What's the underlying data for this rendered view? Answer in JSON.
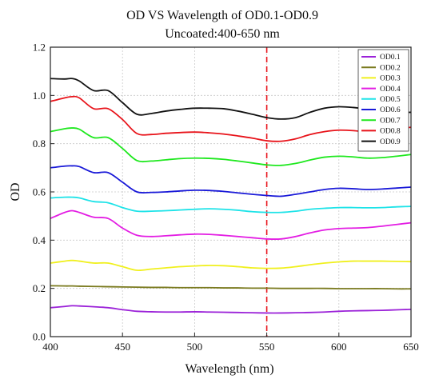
{
  "chart_data": {
    "type": "line",
    "title": "OD VS Wavelength of OD0.1-OD0.9",
    "subtitle": "Uncoated:400-650 nm",
    "xlabel": "Wavelength (nm)",
    "ylabel": "OD",
    "xlim": [
      400,
      650
    ],
    "ylim": [
      0.0,
      1.2
    ],
    "xticks": [
      400,
      450,
      500,
      550,
      600,
      650
    ],
    "yticks": [
      "0.0",
      "0.2",
      "0.4",
      "0.6",
      "0.8",
      "1.0",
      "1.2"
    ],
    "grid": true,
    "legend_position": "top-right",
    "reference_line": {
      "x": 550,
      "color": "#e8111a",
      "style": "dashed"
    },
    "x": [
      400,
      410,
      415,
      420,
      430,
      440,
      450,
      460,
      470,
      480,
      490,
      500,
      510,
      520,
      530,
      540,
      550,
      560,
      570,
      580,
      590,
      600,
      610,
      620,
      630,
      640,
      650
    ],
    "series": [
      {
        "name": "OD0.1",
        "color": "#9b22d8",
        "values": [
          0.12,
          0.125,
          0.128,
          0.127,
          0.124,
          0.12,
          0.112,
          0.105,
          0.103,
          0.102,
          0.102,
          0.103,
          0.102,
          0.101,
          0.1,
          0.099,
          0.098,
          0.098,
          0.099,
          0.1,
          0.102,
          0.105,
          0.107,
          0.108,
          0.109,
          0.111,
          0.113
        ]
      },
      {
        "name": "OD0.2",
        "color": "#7a7a1e",
        "values": [
          0.211,
          0.21,
          0.21,
          0.209,
          0.208,
          0.207,
          0.206,
          0.205,
          0.204,
          0.204,
          0.203,
          0.203,
          0.203,
          0.202,
          0.202,
          0.201,
          0.201,
          0.2,
          0.2,
          0.2,
          0.2,
          0.199,
          0.199,
          0.199,
          0.199,
          0.198,
          0.198
        ]
      },
      {
        "name": "OD0.3",
        "color": "#f0f01e",
        "values": [
          0.305,
          0.313,
          0.316,
          0.313,
          0.305,
          0.305,
          0.29,
          0.275,
          0.28,
          0.285,
          0.29,
          0.293,
          0.295,
          0.294,
          0.29,
          0.285,
          0.283,
          0.284,
          0.29,
          0.298,
          0.305,
          0.31,
          0.313,
          0.313,
          0.313,
          0.312,
          0.311
        ]
      },
      {
        "name": "OD0.4",
        "color": "#e31ee3",
        "values": [
          0.49,
          0.515,
          0.522,
          0.515,
          0.495,
          0.49,
          0.45,
          0.42,
          0.415,
          0.418,
          0.422,
          0.425,
          0.424,
          0.42,
          0.415,
          0.41,
          0.405,
          0.405,
          0.415,
          0.43,
          0.442,
          0.448,
          0.45,
          0.452,
          0.458,
          0.465,
          0.472
        ]
      },
      {
        "name": "OD0.5",
        "color": "#1ee3e8",
        "values": [
          0.575,
          0.578,
          0.578,
          0.575,
          0.56,
          0.555,
          0.535,
          0.52,
          0.52,
          0.522,
          0.525,
          0.528,
          0.53,
          0.528,
          0.524,
          0.518,
          0.515,
          0.515,
          0.52,
          0.528,
          0.532,
          0.535,
          0.535,
          0.534,
          0.535,
          0.538,
          0.54
        ]
      },
      {
        "name": "OD0.6",
        "color": "#1a1ad8",
        "values": [
          0.7,
          0.707,
          0.708,
          0.705,
          0.68,
          0.68,
          0.64,
          0.6,
          0.598,
          0.6,
          0.604,
          0.607,
          0.606,
          0.602,
          0.596,
          0.59,
          0.585,
          0.582,
          0.59,
          0.6,
          0.61,
          0.615,
          0.613,
          0.61,
          0.612,
          0.616,
          0.62
        ]
      },
      {
        "name": "OD0.7",
        "color": "#1ee81e",
        "values": [
          0.85,
          0.862,
          0.865,
          0.86,
          0.825,
          0.825,
          0.78,
          0.73,
          0.728,
          0.733,
          0.738,
          0.74,
          0.739,
          0.735,
          0.728,
          0.72,
          0.712,
          0.71,
          0.718,
          0.732,
          0.744,
          0.748,
          0.745,
          0.74,
          0.742,
          0.748,
          0.755
        ]
      },
      {
        "name": "OD0.8",
        "color": "#e8131a",
        "values": [
          0.975,
          0.99,
          0.995,
          0.99,
          0.945,
          0.945,
          0.9,
          0.842,
          0.838,
          0.843,
          0.846,
          0.848,
          0.845,
          0.84,
          0.832,
          0.823,
          0.812,
          0.81,
          0.82,
          0.838,
          0.85,
          0.856,
          0.854,
          0.848,
          0.848,
          0.86,
          0.868
        ]
      },
      {
        "name": "OD0.9",
        "color": "#111111",
        "values": [
          1.07,
          1.068,
          1.07,
          1.06,
          1.02,
          1.02,
          0.97,
          0.922,
          0.925,
          0.935,
          0.942,
          0.947,
          0.947,
          0.945,
          0.935,
          0.922,
          0.908,
          0.902,
          0.908,
          0.93,
          0.947,
          0.953,
          0.95,
          0.943,
          0.935,
          0.93,
          0.93
        ]
      }
    ]
  }
}
